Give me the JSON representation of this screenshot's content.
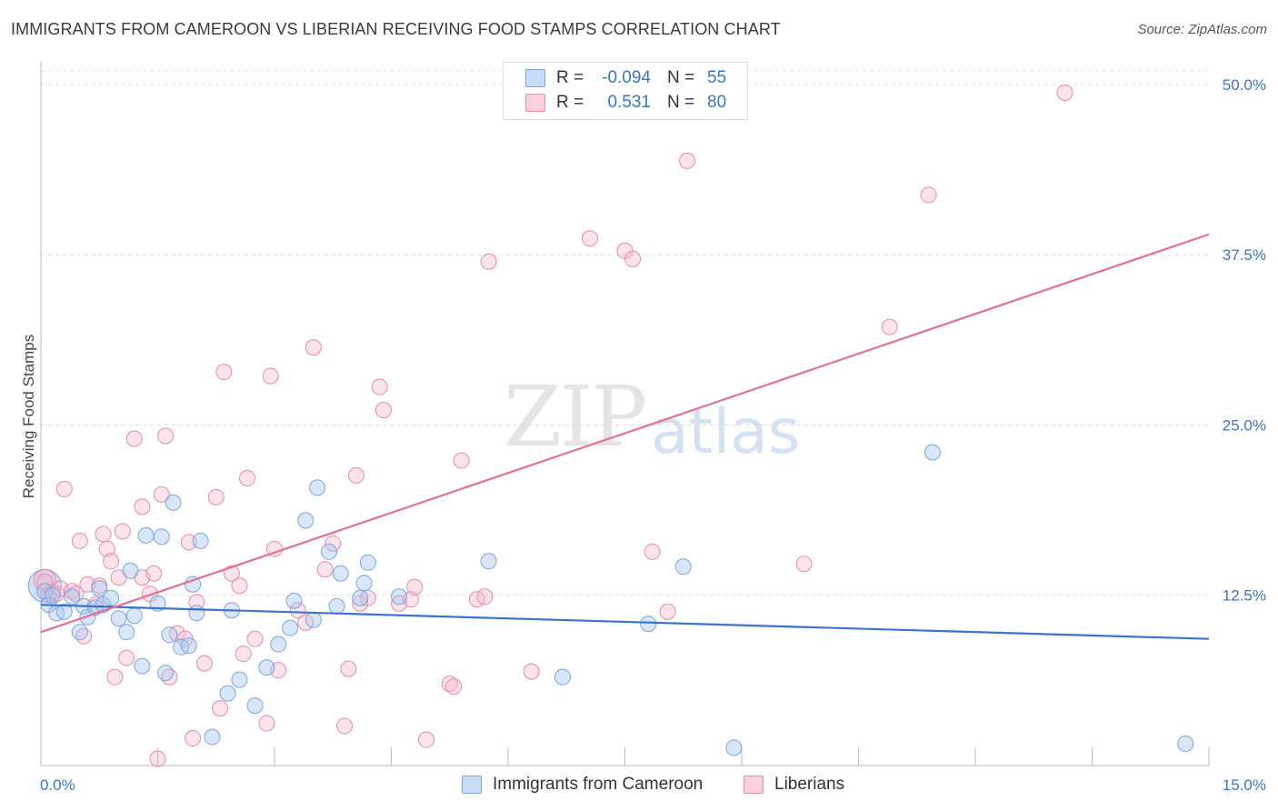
{
  "header": {
    "title": "IMMIGRANTS FROM CAMEROON VS LIBERIAN RECEIVING FOOD STAMPS CORRELATION CHART",
    "source": "Source: ZipAtlas.com"
  },
  "watermark": {
    "zip": "ZIP",
    "atlas": "atlas"
  },
  "legend": {
    "rows": [
      {
        "r_label": "R =",
        "r_value": "-0.094",
        "n_label": "N =",
        "n_value": "55",
        "color": "#a9c8f0"
      },
      {
        "r_label": "R =",
        "r_value": "0.531",
        "n_label": "N =",
        "n_value": "80",
        "color": "#f5b9cc"
      }
    ]
  },
  "bottom_legend": {
    "series_a": "Immigrants from Cameroon",
    "series_b": "Liberians"
  },
  "chart_data": {
    "type": "scatter",
    "ylabel": "Receiving Food Stamps",
    "x_tick_labels": {
      "left": "0.0%",
      "right": "15.0%"
    },
    "y_tick_labels": [
      "12.5%",
      "25.0%",
      "37.5%",
      "50.0%"
    ],
    "xlim": [
      0,
      15
    ],
    "ylim": [
      0,
      51
    ],
    "grid": true,
    "colors": {
      "cameroon": "#3b74c9",
      "liberian": "#e07099",
      "cameroon_fill": "#a9c8f0",
      "liberian_fill": "#f5b9cc"
    },
    "series": [
      {
        "name": "Immigrants from Cameroon",
        "trend": {
          "x": [
            0,
            15
          ],
          "y": [
            11.8,
            9.3
          ]
        },
        "points": [
          [
            0.05,
            12.8
          ],
          [
            0.1,
            11.8
          ],
          [
            0.15,
            12.5
          ],
          [
            0.2,
            11.2
          ],
          [
            0.3,
            11.3
          ],
          [
            0.4,
            12.4
          ],
          [
            0.5,
            9.8
          ],
          [
            0.55,
            11.7
          ],
          [
            0.6,
            10.9
          ],
          [
            0.7,
            11.6
          ],
          [
            0.75,
            13.0
          ],
          [
            0.8,
            11.8
          ],
          [
            0.9,
            12.3
          ],
          [
            1.0,
            10.8
          ],
          [
            1.1,
            9.8
          ],
          [
            1.15,
            14.3
          ],
          [
            1.2,
            11.0
          ],
          [
            1.3,
            7.3
          ],
          [
            1.35,
            16.9
          ],
          [
            1.5,
            11.9
          ],
          [
            1.55,
            16.8
          ],
          [
            1.6,
            6.8
          ],
          [
            1.65,
            9.6
          ],
          [
            1.7,
            19.3
          ],
          [
            1.8,
            8.7
          ],
          [
            1.9,
            8.8
          ],
          [
            1.95,
            13.3
          ],
          [
            2.0,
            11.2
          ],
          [
            2.05,
            16.5
          ],
          [
            2.2,
            2.1
          ],
          [
            2.4,
            5.3
          ],
          [
            2.45,
            11.4
          ],
          [
            2.55,
            6.3
          ],
          [
            2.75,
            4.4
          ],
          [
            2.9,
            7.2
          ],
          [
            3.05,
            8.9
          ],
          [
            3.2,
            10.1
          ],
          [
            3.25,
            12.1
          ],
          [
            3.4,
            18.0
          ],
          [
            3.5,
            10.7
          ],
          [
            3.55,
            20.4
          ],
          [
            3.7,
            15.7
          ],
          [
            3.8,
            11.7
          ],
          [
            3.85,
            14.1
          ],
          [
            4.1,
            12.3
          ],
          [
            4.15,
            13.4
          ],
          [
            4.2,
            14.9
          ],
          [
            4.6,
            12.4
          ],
          [
            5.75,
            15.0
          ],
          [
            6.7,
            6.5
          ],
          [
            7.8,
            10.4
          ],
          [
            8.25,
            14.6
          ],
          [
            8.9,
            1.3
          ],
          [
            11.45,
            23.0
          ],
          [
            14.7,
            1.6
          ]
        ]
      },
      {
        "name": "Liberians",
        "trend": {
          "x": [
            0,
            15
          ],
          "y": [
            9.8,
            39.0
          ]
        },
        "points": [
          [
            0.05,
            13.5
          ],
          [
            0.1,
            12.5
          ],
          [
            0.15,
            12.7
          ],
          [
            0.2,
            12.6
          ],
          [
            0.25,
            13.0
          ],
          [
            0.3,
            20.3
          ],
          [
            0.4,
            12.8
          ],
          [
            0.45,
            12.6
          ],
          [
            0.5,
            16.5
          ],
          [
            0.55,
            9.5
          ],
          [
            0.6,
            13.3
          ],
          [
            0.7,
            11.8
          ],
          [
            0.75,
            13.2
          ],
          [
            0.8,
            17.0
          ],
          [
            0.85,
            15.9
          ],
          [
            0.9,
            15.0
          ],
          [
            0.95,
            6.5
          ],
          [
            1.0,
            13.8
          ],
          [
            1.05,
            17.2
          ],
          [
            1.1,
            7.9
          ],
          [
            1.2,
            24.0
          ],
          [
            1.3,
            13.8
          ],
          [
            1.3,
            19.0
          ],
          [
            1.4,
            12.6
          ],
          [
            1.45,
            14.1
          ],
          [
            1.5,
            0.5
          ],
          [
            1.55,
            19.9
          ],
          [
            1.65,
            6.5
          ],
          [
            1.6,
            24.2
          ],
          [
            1.75,
            9.7
          ],
          [
            1.85,
            9.3
          ],
          [
            1.9,
            16.4
          ],
          [
            1.95,
            2.0
          ],
          [
            2.0,
            12.0
          ],
          [
            2.1,
            7.5
          ],
          [
            2.25,
            19.7
          ],
          [
            2.3,
            4.2
          ],
          [
            2.35,
            28.9
          ],
          [
            2.45,
            14.1
          ],
          [
            2.55,
            13.2
          ],
          [
            2.6,
            8.2
          ],
          [
            2.65,
            21.1
          ],
          [
            2.75,
            9.3
          ],
          [
            2.9,
            3.1
          ],
          [
            2.95,
            28.6
          ],
          [
            3.0,
            15.9
          ],
          [
            3.05,
            7.0
          ],
          [
            3.3,
            11.4
          ],
          [
            3.4,
            10.5
          ],
          [
            3.5,
            30.7
          ],
          [
            3.65,
            14.4
          ],
          [
            3.75,
            16.3
          ],
          [
            3.9,
            2.9
          ],
          [
            3.95,
            7.1
          ],
          [
            4.05,
            21.3
          ],
          [
            4.1,
            11.9
          ],
          [
            4.2,
            12.3
          ],
          [
            4.35,
            27.8
          ],
          [
            4.4,
            26.1
          ],
          [
            4.6,
            11.9
          ],
          [
            4.75,
            12.2
          ],
          [
            4.8,
            13.1
          ],
          [
            4.95,
            1.9
          ],
          [
            5.25,
            6.0
          ],
          [
            5.3,
            5.8
          ],
          [
            5.4,
            22.4
          ],
          [
            5.6,
            12.2
          ],
          [
            5.7,
            12.4
          ],
          [
            5.75,
            37.0
          ],
          [
            6.3,
            6.9
          ],
          [
            7.05,
            38.7
          ],
          [
            7.5,
            37.8
          ],
          [
            7.6,
            37.2
          ],
          [
            7.85,
            15.7
          ],
          [
            8.05,
            11.3
          ],
          [
            8.3,
            44.4
          ],
          [
            9.8,
            14.8
          ],
          [
            10.9,
            32.2
          ],
          [
            11.4,
            41.9
          ],
          [
            13.15,
            49.4
          ]
        ]
      }
    ]
  }
}
